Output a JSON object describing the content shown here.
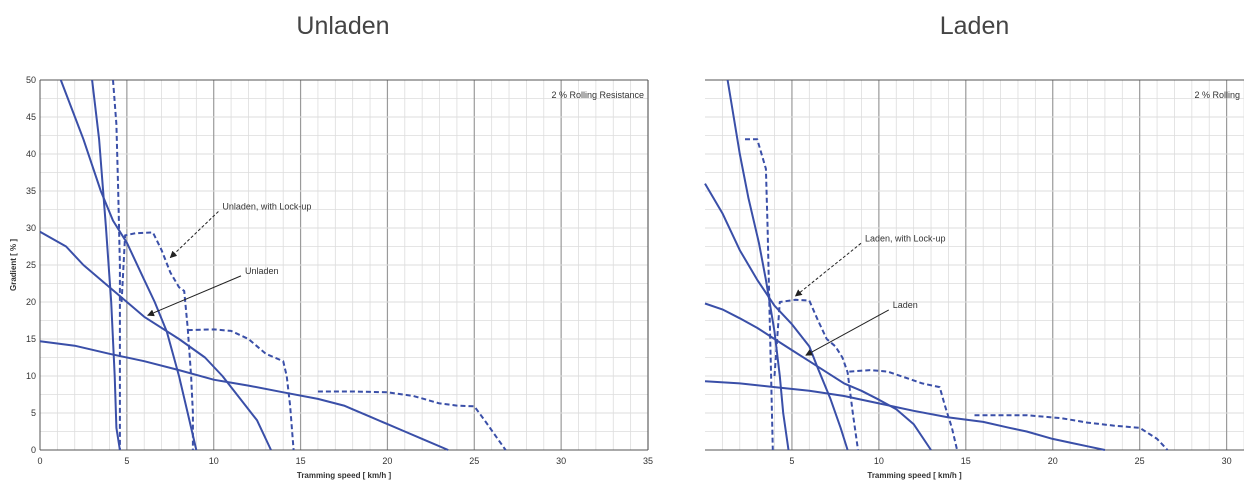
{
  "chart_data": [
    {
      "type": "line",
      "title": "Unladen",
      "xlabel": "Tramming speed [ km/h ]",
      "ylabel": "Gradient [ % ]",
      "xlim": [
        0,
        35
      ],
      "ylim": [
        0,
        50
      ],
      "xticks": [
        0,
        5,
        10,
        15,
        20,
        25,
        30,
        35
      ],
      "yticks": [
        0,
        5,
        10,
        15,
        20,
        25,
        30,
        35,
        40,
        45,
        50
      ],
      "show_y_tick_labels": true,
      "annotation": "2 % Rolling Resistance",
      "callouts": [
        {
          "text": "Unladen, with Lock-up",
          "x": 10.5,
          "y": 32.5,
          "target": [
            7.5,
            26
          ],
          "style": "dashed"
        },
        {
          "text": "Unladen",
          "x": 11.8,
          "y": 23.8,
          "target": [
            6.2,
            18.2
          ],
          "style": "solid"
        }
      ],
      "series": [
        {
          "style": "solid",
          "points": [
            [
              1.2,
              50
            ],
            [
              2.5,
              42
            ],
            [
              3.5,
              35
            ],
            [
              4.2,
              31
            ],
            [
              5,
              28
            ],
            [
              6,
              23
            ],
            [
              6.6,
              20
            ],
            [
              7.3,
              16
            ],
            [
              8,
              10
            ],
            [
              8.5,
              5
            ],
            [
              9,
              0
            ]
          ]
        },
        {
          "style": "solid",
          "points": [
            [
              0,
              29.5
            ],
            [
              1.5,
              27.5
            ],
            [
              2.5,
              25
            ],
            [
              4,
              22
            ],
            [
              5,
              20
            ],
            [
              6,
              18
            ],
            [
              8,
              15
            ],
            [
              9.5,
              12.5
            ],
            [
              10.5,
              10
            ],
            [
              11.5,
              7
            ],
            [
              12.5,
              4
            ],
            [
              13.3,
              0
            ]
          ]
        },
        {
          "style": "solid",
          "points": [
            [
              0,
              14.7
            ],
            [
              2,
              14.1
            ],
            [
              4,
              13
            ],
            [
              6,
              12
            ],
            [
              8,
              10.8
            ],
            [
              10,
              9.5
            ],
            [
              12,
              8.7
            ],
            [
              14,
              7.8
            ],
            [
              16,
              6.9
            ],
            [
              17.5,
              6
            ],
            [
              18,
              5.5
            ],
            [
              19,
              4.5
            ],
            [
              20,
              3.5
            ],
            [
              21,
              2.5
            ],
            [
              22,
              1.5
            ],
            [
              23.5,
              0
            ]
          ]
        },
        {
          "style": "solid",
          "points": [
            [
              3,
              50
            ],
            [
              3.4,
              42
            ],
            [
              3.8,
              30
            ],
            [
              4.1,
              20
            ],
            [
              4.3,
              10
            ],
            [
              4.4,
              3
            ],
            [
              4.6,
              0
            ]
          ]
        },
        {
          "style": "dashed",
          "points": [
            [
              4.2,
              50
            ],
            [
              4.4,
              44
            ],
            [
              4.5,
              35
            ],
            [
              4.6,
              25
            ],
            [
              4.6,
              15
            ],
            [
              4.6,
              5
            ],
            [
              4.6,
              0
            ]
          ]
        },
        {
          "style": "dashed",
          "points": [
            [
              4.7,
              20
            ],
            [
              4.9,
              29
            ],
            [
              5.5,
              29.3
            ],
            [
              6.5,
              29.4
            ],
            [
              7,
              27
            ],
            [
              7.5,
              24
            ],
            [
              8,
              22
            ],
            [
              8.3,
              21.5
            ],
            [
              8.5,
              16.5
            ],
            [
              8.7,
              10
            ],
            [
              8.8,
              5
            ],
            [
              8.8,
              0
            ]
          ]
        },
        {
          "style": "dashed",
          "points": [
            [
              8.5,
              16.2
            ],
            [
              10,
              16.3
            ],
            [
              11,
              16.1
            ],
            [
              12,
              15
            ],
            [
              13,
              13
            ],
            [
              14,
              12
            ],
            [
              14.2,
              10
            ],
            [
              14.4,
              6
            ],
            [
              14.6,
              0
            ]
          ]
        },
        {
          "style": "dashed",
          "points": [
            [
              16,
              7.9
            ],
            [
              18,
              7.9
            ],
            [
              20,
              7.8
            ],
            [
              21.5,
              7.3
            ],
            [
              23,
              6.3
            ],
            [
              24,
              6
            ],
            [
              25,
              5.9
            ],
            [
              25.6,
              4
            ],
            [
              26.2,
              2
            ],
            [
              26.8,
              0
            ]
          ]
        }
      ]
    },
    {
      "type": "line",
      "title": "Laden",
      "xlabel": "Tramming speed [ km/h ]",
      "ylabel": "",
      "xlim": [
        0,
        31
      ],
      "ylim": [
        0,
        50
      ],
      "xticks": [
        5,
        10,
        15,
        20,
        25,
        30
      ],
      "yticks": [
        0,
        5,
        10,
        15,
        20,
        25,
        30,
        35,
        40,
        45,
        50
      ],
      "show_y_tick_labels": false,
      "annotation": "2 % Rolling",
      "callouts": [
        {
          "text": "Laden, with Lock-up",
          "x": 9.2,
          "y": 28.2,
          "target": [
            5.2,
            20.8
          ],
          "style": "dashed"
        },
        {
          "text": "Laden",
          "x": 10.8,
          "y": 19.2,
          "target": [
            5.8,
            12.8
          ],
          "style": "solid"
        }
      ],
      "series": [
        {
          "style": "solid",
          "points": [
            [
              1.3,
              50
            ],
            [
              2,
              40
            ],
            [
              2.5,
              34
            ],
            [
              3.1,
              28
            ],
            [
              3.5,
              23
            ],
            [
              4,
              16
            ],
            [
              4.3,
              10
            ],
            [
              4.5,
              5
            ],
            [
              4.8,
              0
            ]
          ]
        },
        {
          "style": "solid",
          "points": [
            [
              0,
              36
            ],
            [
              1,
              32
            ],
            [
              2,
              27
            ],
            [
              3,
              23
            ],
            [
              4,
              19.5
            ],
            [
              5,
              17
            ],
            [
              6,
              14
            ],
            [
              6.5,
              11
            ],
            [
              7.2,
              7
            ],
            [
              7.8,
              3
            ],
            [
              8.2,
              0
            ]
          ]
        },
        {
          "style": "solid",
          "points": [
            [
              0,
              19.8
            ],
            [
              1,
              19
            ],
            [
              2,
              17.8
            ],
            [
              3,
              16.5
            ],
            [
              4,
              15
            ],
            [
              5,
              13.5
            ],
            [
              6,
              12
            ],
            [
              7,
              10.5
            ],
            [
              8,
              9
            ],
            [
              9,
              8
            ],
            [
              10,
              6.8
            ],
            [
              11,
              5.5
            ],
            [
              12,
              3.5
            ],
            [
              13,
              0
            ]
          ]
        },
        {
          "style": "solid",
          "points": [
            [
              0,
              9.3
            ],
            [
              2,
              9
            ],
            [
              4,
              8.5
            ],
            [
              6,
              8
            ],
            [
              8,
              7.3
            ],
            [
              10,
              6.3
            ],
            [
              12,
              5.3
            ],
            [
              14,
              4.4
            ],
            [
              16,
              3.8
            ],
            [
              17.5,
              3
            ],
            [
              18.5,
              2.5
            ],
            [
              20,
              1.5
            ],
            [
              21,
              1
            ],
            [
              22,
              0.5
            ],
            [
              23,
              0
            ]
          ]
        },
        {
          "style": "dashed",
          "points": [
            [
              2.3,
              42
            ],
            [
              3,
              42
            ],
            [
              3.5,
              38
            ],
            [
              3.6,
              30
            ],
            [
              3.7,
              20
            ],
            [
              3.8,
              10
            ],
            [
              3.9,
              0
            ]
          ]
        },
        {
          "style": "dashed",
          "points": [
            [
              4,
              10
            ],
            [
              4.3,
              20
            ],
            [
              5.2,
              20.3
            ],
            [
              6,
              20.2
            ],
            [
              6.5,
              17.5
            ],
            [
              7,
              15
            ],
            [
              7.5,
              14
            ],
            [
              7.9,
              12.5
            ],
            [
              8.2,
              10.5
            ],
            [
              8.5,
              5
            ],
            [
              8.8,
              0
            ]
          ]
        },
        {
          "style": "dashed",
          "points": [
            [
              8.3,
              10.6
            ],
            [
              9.5,
              10.8
            ],
            [
              10.5,
              10.6
            ],
            [
              11.5,
              9.8
            ],
            [
              12.5,
              9
            ],
            [
              13.5,
              8.5
            ],
            [
              13.8,
              6
            ],
            [
              14.2,
              3
            ],
            [
              14.5,
              0
            ]
          ]
        },
        {
          "style": "dashed",
          "points": [
            [
              15.5,
              4.7
            ],
            [
              17,
              4.7
            ],
            [
              18.5,
              4.7
            ],
            [
              19.5,
              4.5
            ],
            [
              20.5,
              4.3
            ],
            [
              22,
              3.7
            ],
            [
              23.5,
              3.3
            ],
            [
              24.5,
              3.1
            ],
            [
              25,
              3
            ],
            [
              26,
              1.5
            ],
            [
              26.6,
              0
            ]
          ]
        }
      ]
    }
  ],
  "colors": {
    "series": "#3a4fa8",
    "axis": "#555555",
    "major_grid": "#9a9a9a",
    "minor_grid": "#dddddd",
    "text": "#333333",
    "title": "#444444"
  }
}
